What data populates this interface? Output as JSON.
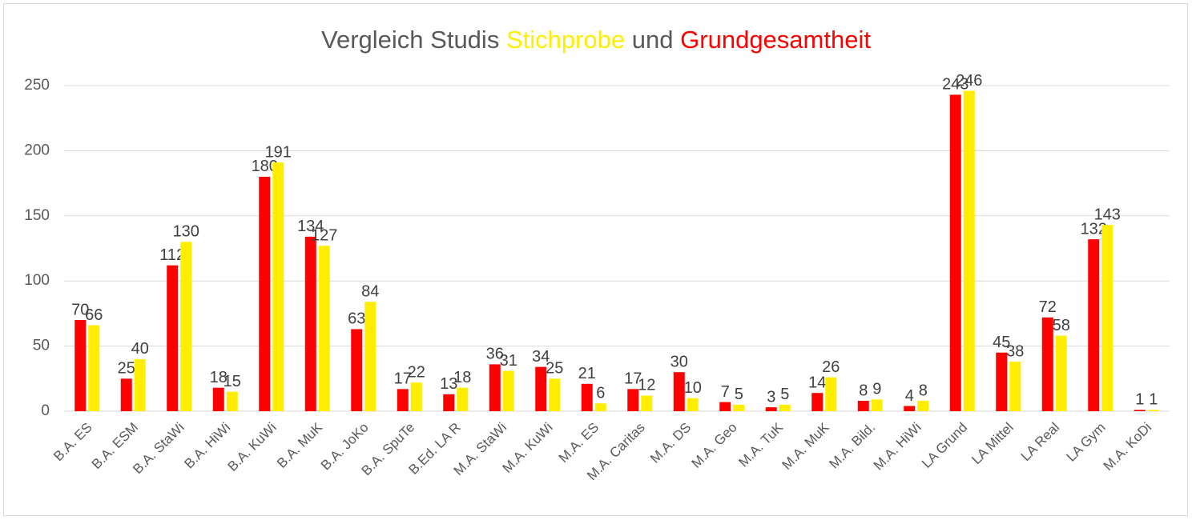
{
  "chart_data": {
    "type": "bar",
    "title": "Vergleich Studis",
    "title_joiner": "und",
    "categories": [
      "B.A. ES",
      "B.A. ESM",
      "B.A. StaWi",
      "B.A. HiWi",
      "B.A. KuWi",
      "B.A. MuK",
      "B.A. JoKo",
      "B.A. SpuTe",
      "B.Ed. LA R",
      "M.A. StaWi",
      "M.A. KuWi",
      "M.A. ES",
      "M.A. Caritas",
      "M.A. DS",
      "M.A. Geo",
      "M.A. TuK",
      "M.A. MuK",
      "M.A. Bild.",
      "M.A. HiWi",
      "LA Grund",
      "LA Mittel",
      "LA Real",
      "LA Gym",
      "M.A. KoDi"
    ],
    "series": [
      {
        "name": "Grundgesamtheit",
        "color": "#ff0000",
        "values": [
          70,
          25,
          112,
          18,
          180,
          134,
          63,
          17,
          13,
          36,
          34,
          21,
          17,
          30,
          7,
          3,
          14,
          8,
          4,
          243,
          45,
          72,
          132,
          1
        ]
      },
      {
        "name": "Stichprobe",
        "color": "#ffee00",
        "values": [
          66,
          40,
          130,
          15,
          191,
          127,
          84,
          22,
          18,
          31,
          25,
          6,
          12,
          10,
          5,
          5,
          26,
          9,
          8,
          246,
          38,
          58,
          143,
          1
        ]
      }
    ],
    "ylim": [
      0,
      250
    ],
    "yticks": [
      0,
      50,
      100,
      150,
      200,
      250
    ],
    "grid": true
  }
}
